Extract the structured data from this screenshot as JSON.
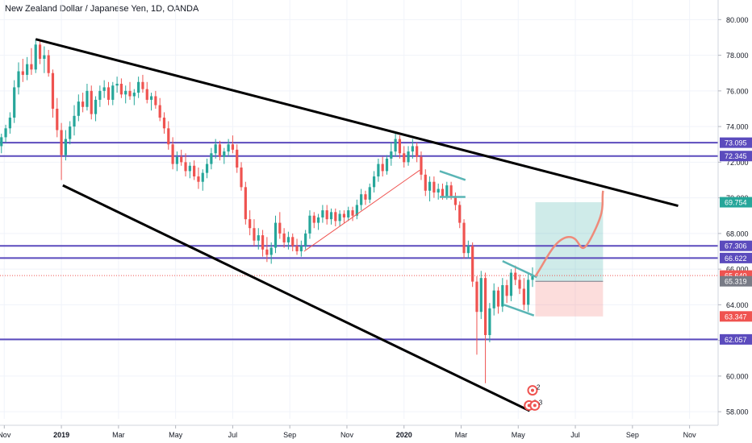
{
  "chart_data": {
    "type": "candlestick",
    "title": "New Zealand Dollar / Japanese Yen, 1D, OANDA",
    "y_axis": {
      "ticks": [
        "80.000",
        "78.000",
        "76.000",
        "74.000",
        "72.000",
        "70.000",
        "68.000",
        "66.000",
        "64.000",
        "62.000",
        "60.000",
        "58.000"
      ],
      "ylim": [
        57.6,
        81.1
      ],
      "position": "right"
    },
    "x_axis": {
      "ticks": [
        {
          "label": "Nov",
          "t": 0
        },
        {
          "label": "2019",
          "t": 2
        },
        {
          "label": "Mar",
          "t": 4
        },
        {
          "label": "May",
          "t": 6
        },
        {
          "label": "Jul",
          "t": 8
        },
        {
          "label": "Sep",
          "t": 10
        },
        {
          "label": "Nov",
          "t": 12
        },
        {
          "label": "2020",
          "t": 14
        },
        {
          "label": "Mar",
          "t": 16
        },
        {
          "label": "May",
          "t": 18
        },
        {
          "label": "Jul",
          "t": 20
        },
        {
          "label": "Sep",
          "t": 22
        },
        {
          "label": "Nov",
          "t": 24
        }
      ],
      "xlim": [
        -0.15,
        25
      ]
    },
    "horizontal_levels": [
      {
        "label": "73.095",
        "value": 73.095,
        "color": "#5b4bbd"
      },
      {
        "label": "72.345",
        "value": 72.345,
        "color": "#5b4bbd"
      },
      {
        "label": "67.306",
        "value": 67.306,
        "color": "#5b4bbd"
      },
      {
        "label": "66.622",
        "value": 66.622,
        "color": "#5b4bbd"
      },
      {
        "label": "62.057",
        "value": 62.057,
        "color": "#5b4bbd"
      }
    ],
    "price_labels": [
      {
        "label": "69.754",
        "value": 69.754,
        "color": "#26a69a"
      },
      {
        "label": "65.640",
        "value": 65.64,
        "color": "#ef5350"
      },
      {
        "label": "65.319",
        "value": 65.319,
        "color": "#787b86"
      },
      {
        "label": "63.347",
        "value": 63.347,
        "color": "#ef5350"
      }
    ],
    "current_price": 65.64,
    "trendlines": [
      {
        "from": [
          1.1,
          78.9
        ],
        "to": [
          23.6,
          69.55
        ],
        "color": "#000000"
      },
      {
        "from": [
          2.05,
          70.7
        ],
        "to": [
          18.4,
          58.05
        ],
        "color": "#000000"
      }
    ],
    "position_box": {
      "x_range": [
        18.6,
        20.97
      ],
      "entry": 65.319,
      "target": 69.754,
      "stop": 63.347
    },
    "candles": [
      [
        -0.1,
        72.9,
        73.6,
        72.5,
        73.4
      ],
      [
        0.05,
        73.4,
        74.1,
        73.1,
        73.9
      ],
      [
        0.2,
        73.9,
        74.8,
        73.6,
        74.5
      ],
      [
        0.35,
        74.5,
        76.6,
        74.2,
        76.2
      ],
      [
        0.5,
        76.2,
        77.6,
        75.8,
        77.1
      ],
      [
        0.65,
        77.1,
        77.8,
        76.5,
        76.9
      ],
      [
        0.8,
        76.9,
        77.9,
        76.6,
        77.5
      ],
      [
        0.95,
        77.5,
        78.4,
        76.9,
        77.2
      ],
      [
        1.1,
        77.2,
        78.9,
        77.0,
        78.6
      ],
      [
        1.25,
        78.6,
        78.8,
        77.5,
        77.8
      ],
      [
        1.4,
        77.8,
        78.5,
        77.0,
        78.0
      ],
      [
        1.55,
        78.0,
        78.3,
        76.8,
        77.0
      ],
      [
        1.7,
        77.0,
        77.2,
        74.5,
        75.0
      ],
      [
        1.85,
        75.0,
        75.6,
        73.4,
        73.8
      ],
      [
        2.0,
        73.8,
        74.2,
        71.0,
        72.4
      ],
      [
        2.15,
        72.4,
        73.8,
        72.1,
        73.3
      ],
      [
        2.3,
        73.3,
        74.3,
        73.0,
        74.0
      ],
      [
        2.45,
        74.0,
        75.2,
        73.5,
        74.6
      ],
      [
        2.6,
        74.6,
        75.8,
        74.3,
        75.4
      ],
      [
        2.75,
        75.4,
        75.9,
        74.8,
        75.1
      ],
      [
        2.9,
        75.1,
        76.4,
        74.9,
        76.0
      ],
      [
        3.05,
        76.0,
        76.3,
        74.4,
        74.7
      ],
      [
        3.2,
        74.7,
        75.7,
        74.3,
        75.5
      ],
      [
        3.35,
        75.5,
        76.3,
        75.1,
        76.0
      ],
      [
        3.5,
        76.0,
        76.6,
        75.6,
        76.2
      ],
      [
        3.65,
        76.2,
        76.5,
        75.2,
        75.5
      ],
      [
        3.8,
        75.5,
        76.5,
        75.2,
        76.3
      ],
      [
        3.95,
        76.3,
        76.8,
        75.9,
        76.4
      ],
      [
        4.1,
        76.4,
        76.7,
        75.6,
        75.8
      ],
      [
        4.25,
        75.8,
        76.3,
        75.3,
        76.0
      ],
      [
        4.4,
        76.0,
        76.5,
        75.5,
        75.7
      ],
      [
        4.55,
        75.7,
        76.1,
        75.2,
        75.9
      ],
      [
        4.7,
        75.9,
        76.8,
        75.6,
        76.5
      ],
      [
        4.85,
        76.5,
        76.9,
        75.9,
        76.1
      ],
      [
        5.0,
        76.1,
        76.5,
        75.3,
        75.5
      ],
      [
        5.15,
        75.5,
        75.9,
        74.9,
        75.7
      ],
      [
        5.3,
        75.7,
        76.0,
        75.0,
        75.2
      ],
      [
        5.45,
        75.2,
        75.6,
        74.3,
        74.5
      ],
      [
        5.6,
        74.5,
        74.8,
        73.6,
        73.9
      ],
      [
        5.75,
        73.9,
        74.3,
        72.7,
        73.0
      ],
      [
        5.9,
        73.0,
        73.4,
        71.6,
        71.9
      ],
      [
        6.05,
        71.9,
        72.6,
        71.5,
        72.3
      ],
      [
        6.2,
        72.3,
        72.7,
        71.8,
        72.0
      ],
      [
        6.35,
        72.0,
        72.5,
        71.2,
        71.5
      ],
      [
        6.5,
        71.5,
        72.0,
        71.1,
        71.8
      ],
      [
        6.65,
        71.8,
        72.1,
        71.0,
        71.2
      ],
      [
        6.8,
        71.2,
        71.7,
        70.5,
        70.9
      ],
      [
        6.95,
        70.9,
        71.6,
        70.4,
        71.4
      ],
      [
        7.1,
        71.4,
        72.2,
        71.1,
        71.9
      ],
      [
        7.25,
        71.9,
        72.8,
        71.6,
        72.5
      ],
      [
        7.4,
        72.5,
        73.3,
        72.2,
        73.0
      ],
      [
        7.55,
        73.0,
        73.2,
        72.1,
        72.3
      ],
      [
        7.7,
        72.3,
        72.8,
        71.9,
        72.6
      ],
      [
        7.85,
        72.6,
        73.3,
        72.3,
        73.0
      ],
      [
        8.0,
        73.0,
        73.5,
        72.5,
        72.7
      ],
      [
        8.15,
        72.7,
        73.0,
        71.4,
        71.7
      ],
      [
        8.3,
        71.7,
        72.0,
        70.4,
        70.6
      ],
      [
        8.45,
        70.6,
        70.9,
        68.5,
        68.8
      ],
      [
        8.6,
        68.8,
        69.3,
        67.9,
        68.3
      ],
      [
        8.75,
        68.3,
        68.8,
        67.3,
        67.6
      ],
      [
        8.9,
        67.6,
        68.3,
        67.1,
        67.9
      ],
      [
        9.05,
        67.9,
        68.2,
        66.7,
        67.1
      ],
      [
        9.2,
        67.1,
        67.8,
        66.4,
        66.8
      ],
      [
        9.35,
        66.8,
        67.5,
        66.3,
        67.2
      ],
      [
        9.5,
        67.2,
        69.0,
        66.9,
        68.6
      ],
      [
        9.65,
        68.6,
        69.2,
        67.7,
        68.0
      ],
      [
        9.8,
        68.0,
        68.3,
        67.2,
        67.5
      ],
      [
        9.95,
        67.5,
        68.1,
        67.1,
        67.8
      ],
      [
        10.1,
        67.8,
        68.0,
        67.0,
        67.3
      ],
      [
        10.25,
        67.3,
        67.7,
        66.8,
        67.0
      ],
      [
        10.4,
        67.0,
        67.6,
        66.7,
        67.3
      ],
      [
        10.55,
        67.3,
        68.2,
        67.1,
        68.0
      ],
      [
        10.7,
        68.0,
        69.3,
        67.7,
        69.0
      ],
      [
        10.85,
        69.0,
        69.2,
        68.3,
        68.6
      ],
      [
        11.0,
        68.6,
        69.1,
        68.2,
        68.9
      ],
      [
        11.15,
        68.9,
        69.6,
        68.6,
        69.3
      ],
      [
        11.3,
        69.3,
        69.6,
        68.5,
        68.8
      ],
      [
        11.45,
        68.8,
        69.4,
        68.5,
        69.2
      ],
      [
        11.6,
        69.2,
        69.4,
        68.4,
        68.7
      ],
      [
        11.75,
        68.7,
        69.3,
        68.4,
        69.1
      ],
      [
        11.9,
        69.1,
        69.3,
        68.6,
        68.9
      ],
      [
        12.05,
        68.9,
        69.5,
        68.7,
        69.3
      ],
      [
        12.2,
        69.3,
        69.5,
        68.7,
        69.0
      ],
      [
        12.35,
        69.0,
        69.9,
        68.8,
        69.6
      ],
      [
        12.5,
        69.6,
        70.5,
        69.3,
        70.2
      ],
      [
        12.65,
        70.2,
        70.4,
        69.6,
        69.9
      ],
      [
        12.8,
        69.9,
        70.8,
        69.7,
        70.6
      ],
      [
        12.95,
        70.6,
        71.5,
        70.3,
        71.2
      ],
      [
        13.1,
        71.2,
        72.2,
        70.9,
        71.9
      ],
      [
        13.25,
        71.9,
        72.3,
        71.2,
        71.5
      ],
      [
        13.4,
        71.5,
        72.4,
        71.3,
        72.2
      ],
      [
        13.55,
        72.2,
        73.1,
        71.8,
        72.6
      ],
      [
        13.7,
        72.6,
        73.6,
        72.3,
        73.3
      ],
      [
        13.85,
        73.3,
        73.5,
        72.2,
        72.5
      ],
      [
        14.0,
        72.5,
        72.9,
        71.7,
        72.0
      ],
      [
        14.15,
        72.0,
        72.9,
        71.8,
        72.6
      ],
      [
        14.3,
        72.6,
        73.3,
        72.2,
        72.9
      ],
      [
        14.45,
        72.9,
        73.1,
        72.0,
        72.3
      ],
      [
        14.6,
        72.3,
        72.6,
        71.0,
        71.3
      ],
      [
        14.75,
        71.3,
        71.6,
        70.1,
        70.4
      ],
      [
        14.9,
        70.4,
        71.2,
        69.8,
        70.9
      ],
      [
        15.05,
        70.9,
        71.2,
        70.0,
        70.3
      ],
      [
        15.2,
        70.3,
        70.8,
        69.9,
        70.5
      ],
      [
        15.35,
        70.5,
        70.8,
        69.9,
        70.1
      ],
      [
        15.5,
        70.1,
        70.9,
        69.9,
        70.7
      ],
      [
        15.65,
        70.7,
        70.9,
        69.9,
        70.1
      ],
      [
        15.8,
        70.1,
        70.3,
        69.3,
        69.6
      ],
      [
        15.95,
        69.6,
        69.8,
        68.3,
        68.6
      ],
      [
        16.1,
        68.6,
        68.8,
        66.6,
        66.9
      ],
      [
        16.25,
        66.9,
        67.6,
        66.6,
        67.3
      ],
      [
        16.4,
        67.3,
        67.5,
        65.0,
        65.3
      ],
      [
        16.55,
        65.3,
        65.6,
        61.2,
        63.6
      ],
      [
        16.7,
        63.6,
        65.9,
        63.2,
        65.5
      ],
      [
        16.85,
        65.5,
        65.8,
        59.6,
        62.3
      ],
      [
        17.0,
        62.3,
        64.1,
        61.9,
        63.8
      ],
      [
        17.15,
        63.8,
        65.2,
        63.4,
        64.8
      ],
      [
        17.3,
        64.8,
        65.0,
        63.5,
        63.9
      ],
      [
        17.45,
        63.9,
        65.5,
        63.6,
        65.1
      ],
      [
        17.6,
        65.1,
        65.4,
        64.1,
        64.5
      ],
      [
        17.75,
        64.5,
        66.0,
        64.2,
        65.8
      ],
      [
        17.9,
        65.8,
        66.2,
        65.1,
        65.4
      ],
      [
        18.05,
        65.4,
        65.7,
        64.6,
        64.9
      ],
      [
        18.2,
        64.9,
        65.5,
        63.7,
        64.0
      ],
      [
        18.35,
        64.0,
        65.8,
        63.6,
        65.4
      ],
      [
        18.5,
        65.4,
        66.1,
        65.0,
        65.64
      ]
    ],
    "annotations": [
      {
        "label": "2",
        "t": 18.5,
        "value": 59.2
      },
      {
        "label": "2",
        "t": 18.38,
        "value": 58.35
      },
      {
        "label": "3",
        "t": 18.58,
        "value": 58.35
      }
    ]
  }
}
